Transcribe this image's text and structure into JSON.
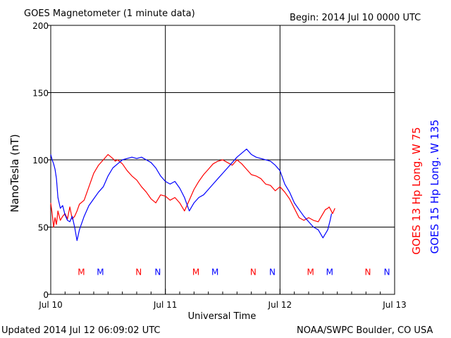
{
  "header": {
    "title": "GOES Magnetometer (1 minute data)",
    "begin": "Begin:  2014 Jul 10 0000 UTC"
  },
  "footer": {
    "updated": "Updated 2014 Jul 12 06:09:02 UTC",
    "credit": "NOAA/SWPC Boulder, CO USA"
  },
  "colors": {
    "goes13": "#ff0000",
    "goes15": "#0000ff",
    "grid": "#000000"
  },
  "chart_data": {
    "type": "line",
    "xlabel": "Universal Time",
    "ylabel": "NanoTesla (nT)",
    "xlim": [
      0,
      72
    ],
    "ylim": [
      0,
      200
    ],
    "xticks": [
      "Jul 10",
      "Jul 11",
      "Jul 12",
      "Jul 13"
    ],
    "yticks": [
      "0",
      "50",
      "100",
      "150",
      "200"
    ],
    "grid": true,
    "series": [
      {
        "name": "GOES 13 Hp  Long. W 75",
        "color": "#ff0000",
        "x": [
          0,
          0.3,
          0.6,
          0.9,
          1.2,
          1.5,
          2,
          2.5,
          3,
          3.5,
          4,
          4.5,
          5,
          5.5,
          6,
          7,
          8,
          9,
          10,
          11,
          12,
          13,
          13.5,
          14,
          15,
          16,
          17,
          18,
          19,
          20,
          21,
          22,
          23,
          24,
          25,
          26,
          27,
          28,
          29,
          30,
          31,
          32,
          33,
          34,
          35,
          36,
          37,
          38,
          39,
          40,
          41,
          42,
          43,
          44,
          45,
          46,
          47,
          48,
          49,
          50,
          51,
          52,
          53,
          54,
          55,
          56,
          57,
          57.5,
          58,
          58.3,
          58.6,
          59,
          59.5
        ],
        "y": [
          68,
          60,
          50,
          57,
          52,
          62,
          55,
          58,
          60,
          56,
          65,
          56,
          58,
          62,
          67,
          70,
          80,
          90,
          96,
          100,
          104,
          101,
          99,
          100,
          97,
          92,
          88,
          85,
          80,
          76,
          71,
          68,
          74,
          73,
          70,
          72,
          68,
          62,
          70,
          78,
          84,
          89,
          93,
          97,
          99,
          100,
          98,
          96,
          100,
          97,
          93,
          89,
          88,
          86,
          82,
          81,
          77,
          80,
          76,
          71,
          64,
          57,
          55,
          57,
          55,
          54,
          60,
          63,
          64,
          65,
          63,
          60,
          64
        ]
      },
      {
        "name": "GOES 15 Hp  Long. W 135",
        "color": "#0000ff",
        "x": [
          0,
          0.3,
          0.6,
          0.9,
          1.2,
          1.5,
          2,
          2.5,
          3,
          3.5,
          4,
          4.5,
          5,
          5.5,
          6,
          7,
          8,
          9,
          10,
          11,
          12,
          13,
          14,
          15,
          16,
          17,
          18,
          19,
          20,
          21,
          22,
          23,
          24,
          25,
          26,
          27,
          28,
          29,
          30,
          31,
          32,
          33,
          34,
          35,
          36,
          37,
          38,
          39,
          40,
          41,
          42,
          43,
          44,
          45,
          46,
          47,
          48,
          49,
          50,
          51,
          52,
          53,
          54,
          55,
          56,
          57,
          58,
          58.5,
          58.8
        ],
        "y": [
          104,
          100,
          97,
          93,
          86,
          72,
          64,
          66,
          59,
          55,
          54,
          58,
          50,
          40,
          48,
          58,
          66,
          71,
          76,
          80,
          88,
          94,
          97,
          100,
          101,
          102,
          101,
          102,
          100,
          98,
          94,
          88,
          84,
          82,
          84,
          79,
          72,
          62,
          68,
          72,
          74,
          78,
          82,
          86,
          90,
          94,
          98,
          102,
          105,
          108,
          104,
          102,
          101,
          100,
          99,
          96,
          92,
          82,
          76,
          68,
          63,
          58,
          54,
          50,
          48,
          42,
          48,
          55,
          60
        ]
      }
    ],
    "markers": [
      {
        "label": "M",
        "x": 6.4,
        "color": "#ff0000"
      },
      {
        "label": "M",
        "x": 10.4,
        "color": "#0000ff"
      },
      {
        "label": "N",
        "x": 18.4,
        "color": "#ff0000"
      },
      {
        "label": "N",
        "x": 22.4,
        "color": "#0000ff"
      },
      {
        "label": "M",
        "x": 30.4,
        "color": "#ff0000"
      },
      {
        "label": "M",
        "x": 34.4,
        "color": "#0000ff"
      },
      {
        "label": "N",
        "x": 42.4,
        "color": "#ff0000"
      },
      {
        "label": "N",
        "x": 46.4,
        "color": "#0000ff"
      },
      {
        "label": "M",
        "x": 54.4,
        "color": "#ff0000"
      },
      {
        "label": "M",
        "x": 58.4,
        "color": "#0000ff"
      },
      {
        "label": "N",
        "x": 66.4,
        "color": "#ff0000"
      },
      {
        "label": "N",
        "x": 70.4,
        "color": "#0000ff"
      }
    ],
    "marker_level": 17
  }
}
